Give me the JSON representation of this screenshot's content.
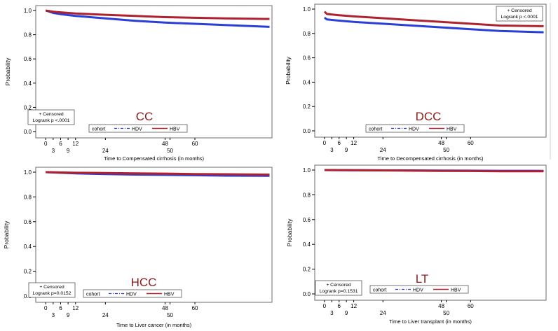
{
  "colors": {
    "hbv": "#b0212e",
    "hdv": "#2a3fd8",
    "panel_title": "#8b1a1a",
    "axis": "#000000"
  },
  "chart_data": [
    {
      "type": "line",
      "title": "CC",
      "xlabel": "Time to Compensated cirrhosis (in months)",
      "ylabel": "Probability",
      "xlim": [
        -4,
        91
      ],
      "ylim": [
        0,
        1
      ],
      "y_ticks": [
        "0.0",
        "0.2",
        "0.4",
        "0.6",
        "0.8",
        "1.0"
      ],
      "x_ticks_upper": [
        "0",
        "6",
        "12",
        "48",
        "60"
      ],
      "x_ticks_lower": [
        "3",
        "9",
        "24",
        "50"
      ],
      "censored_label": "+ Censored",
      "logrank_label": "Logrank p <.0001",
      "legend": {
        "title": "cohort",
        "entries": [
          "HDV",
          "HBV"
        ]
      },
      "series": [
        {
          "name": "HBV",
          "x": [
            0,
            3,
            6,
            12,
            24,
            36,
            48,
            60,
            72,
            90
          ],
          "y": [
            1.0,
            0.99,
            0.985,
            0.975,
            0.965,
            0.955,
            0.945,
            0.94,
            0.935,
            0.93
          ]
        },
        {
          "name": "HDV",
          "x": [
            0,
            3,
            6,
            12,
            24,
            36,
            48,
            60,
            72,
            90
          ],
          "y": [
            1.0,
            0.98,
            0.97,
            0.955,
            0.935,
            0.915,
            0.9,
            0.89,
            0.88,
            0.865
          ]
        }
      ]
    },
    {
      "type": "line",
      "title": "DCC",
      "xlabel": "Time to Decompensated cirrhosis (in months)",
      "ylabel": "Probability",
      "xlim": [
        -4,
        91
      ],
      "ylim": [
        0,
        1
      ],
      "y_ticks": [
        "0.0",
        "0.2",
        "0.4",
        "0.6",
        "0.8",
        "1.0"
      ],
      "x_ticks_upper": [
        "0",
        "6",
        "12",
        "48",
        "60"
      ],
      "x_ticks_lower": [
        "3",
        "9",
        "24",
        "50"
      ],
      "censored_label": "+ Censored",
      "logrank_label": "Logrank p <.0001",
      "legend": {
        "title": "cohort",
        "entries": [
          "HDV",
          "HBV"
        ]
      },
      "series": [
        {
          "name": "HBV",
          "x": [
            0,
            1,
            6,
            12,
            24,
            36,
            48,
            60,
            72,
            90
          ],
          "y": [
            0.98,
            0.96,
            0.95,
            0.94,
            0.925,
            0.91,
            0.895,
            0.88,
            0.865,
            0.86
          ]
        },
        {
          "name": "HDV",
          "x": [
            0,
            1,
            6,
            12,
            24,
            36,
            48,
            60,
            72,
            90
          ],
          "y": [
            0.93,
            0.915,
            0.905,
            0.895,
            0.88,
            0.865,
            0.85,
            0.835,
            0.82,
            0.81
          ]
        }
      ]
    },
    {
      "type": "line",
      "title": "HCC",
      "xlabel": "Time to Liver cancer (in months)",
      "ylabel": "Probability",
      "xlim": [
        -4,
        91
      ],
      "ylim": [
        0,
        1
      ],
      "y_ticks": [
        "0.0",
        "0.2",
        "0.4",
        "0.6",
        "0.8",
        "1.0"
      ],
      "x_ticks_upper": [
        "0",
        "6",
        "12",
        "48",
        "60"
      ],
      "x_ticks_lower": [
        "3",
        "9",
        "24",
        "50"
      ],
      "censored_label": "+ Censored",
      "logrank_label": "Logrank p=0.0152",
      "legend": {
        "title": "cohort",
        "entries": [
          "HDV",
          "HBV"
        ]
      },
      "series": [
        {
          "name": "HBV",
          "x": [
            0,
            6,
            12,
            24,
            36,
            48,
            60,
            72,
            90
          ],
          "y": [
            1.0,
            0.998,
            0.995,
            0.993,
            0.99,
            0.988,
            0.985,
            0.983,
            0.98
          ]
        },
        {
          "name": "HDV",
          "x": [
            0,
            6,
            12,
            24,
            36,
            48,
            60,
            72,
            90
          ],
          "y": [
            1.0,
            0.995,
            0.99,
            0.985,
            0.98,
            0.978,
            0.975,
            0.972,
            0.97
          ]
        }
      ]
    },
    {
      "type": "line",
      "title": "LT",
      "xlabel": "Time to Liver transplant (in months)",
      "ylabel": "Probability",
      "xlim": [
        -4,
        91
      ],
      "ylim": [
        0,
        1
      ],
      "y_ticks": [
        "0.0",
        "0.2",
        "0.4",
        "0.6",
        "0.8",
        "1.0"
      ],
      "x_ticks_upper": [
        "0",
        "6",
        "12",
        "48",
        "60"
      ],
      "x_ticks_lower": [
        "3",
        "9",
        "24",
        "50"
      ],
      "censored_label": "+ Censored",
      "logrank_label": "Logrank p=0.1531",
      "legend": {
        "title": "cohort",
        "entries": [
          "HDV",
          "HBV"
        ]
      },
      "series": [
        {
          "name": "HBV",
          "x": [
            0,
            12,
            24,
            36,
            48,
            60,
            72,
            90
          ],
          "y": [
            1.0,
            0.999,
            0.997,
            0.995,
            0.993,
            0.992,
            0.99,
            0.99
          ]
        },
        {
          "name": "HDV",
          "x": [
            0,
            12,
            24,
            36,
            48,
            60,
            72,
            90
          ],
          "y": [
            1.0,
            0.999,
            0.998,
            0.997,
            0.996,
            0.995,
            0.994,
            0.993
          ]
        }
      ]
    }
  ]
}
